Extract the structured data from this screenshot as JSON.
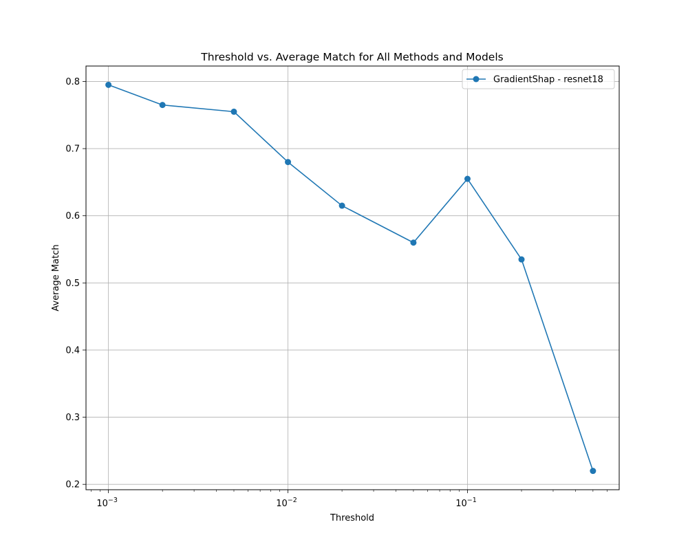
{
  "chart_data": {
    "type": "line",
    "title": "Threshold vs. Average Match for All Methods and Models",
    "xlabel": "Threshold",
    "ylabel": "Average Match",
    "xscale": "log",
    "xlim": [
      0.00075,
      0.7
    ],
    "ylim": [
      0.192,
      0.823
    ],
    "grid": true,
    "legend_position": "top-right",
    "x_ticks": [
      {
        "value": 0.001,
        "base": "10",
        "exp": "−3"
      },
      {
        "value": 0.01,
        "base": "10",
        "exp": "−2"
      },
      {
        "value": 0.1,
        "base": "10",
        "exp": "−1"
      }
    ],
    "y_ticks": [
      {
        "value": 0.2,
        "label": "0.2"
      },
      {
        "value": 0.3,
        "label": "0.3"
      },
      {
        "value": 0.4,
        "label": "0.4"
      },
      {
        "value": 0.5,
        "label": "0.5"
      },
      {
        "value": 0.6,
        "label": "0.6"
      },
      {
        "value": 0.7,
        "label": "0.7"
      },
      {
        "value": 0.8,
        "label": "0.8"
      }
    ],
    "series": [
      {
        "name": "GradientShap - resnet18",
        "color": "#1f77b4",
        "marker": "circle",
        "x": [
          0.001,
          0.002,
          0.005,
          0.01,
          0.02,
          0.05,
          0.1,
          0.2,
          0.5
        ],
        "y": [
          0.795,
          0.765,
          0.755,
          0.68,
          0.615,
          0.56,
          0.655,
          0.535,
          0.22
        ]
      }
    ]
  }
}
